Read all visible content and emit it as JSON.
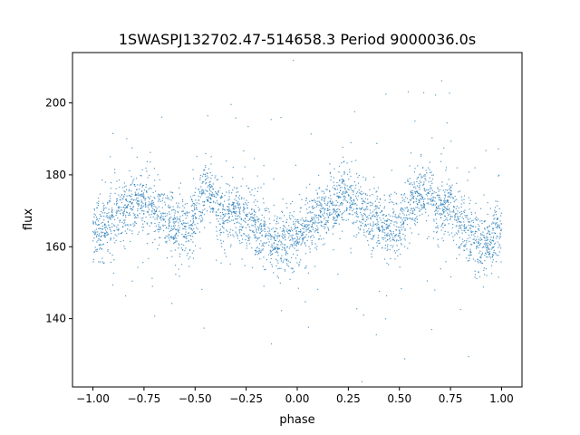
{
  "chart_data": {
    "type": "scatter",
    "title": "1SWASPJ132702.47-514658.3 Period 9000036.0s",
    "xlabel": "phase",
    "ylabel": "flux",
    "xlim": [
      -1.1,
      1.1
    ],
    "ylim": [
      121,
      214
    ],
    "xticks": [
      -1.0,
      -0.75,
      -0.5,
      -0.25,
      0.0,
      0.25,
      0.5,
      0.75,
      1.0
    ],
    "xtick_labels": [
      "−1.00",
      "−0.75",
      "−0.50",
      "−0.25",
      "0.00",
      "0.25",
      "0.50",
      "0.75",
      "1.00"
    ],
    "yticks": [
      140,
      160,
      180,
      200
    ],
    "ytick_labels": [
      "140",
      "160",
      "180",
      "200"
    ],
    "grid": false,
    "legend": "none",
    "marker_color": "#1f77b4",
    "series": [
      {
        "phase_range": [
          -1.0,
          1.0
        ],
        "baseline_flux": 166,
        "scatter_sigma": 7,
        "trend": {
          "phase": [
            -1.0,
            -0.95,
            -0.9,
            -0.85,
            -0.8,
            -0.75,
            -0.7,
            -0.65,
            -0.6,
            -0.55,
            -0.5,
            -0.45,
            -0.4,
            -0.35,
            -0.3,
            -0.25,
            -0.2,
            -0.15,
            -0.1,
            -0.05,
            0.0,
            0.05,
            0.1,
            0.15,
            0.2,
            0.25,
            0.3,
            0.35,
            0.4,
            0.45,
            0.5,
            0.55,
            0.6,
            0.65,
            0.7,
            0.75,
            0.8,
            0.85,
            0.9,
            0.95,
            1.0
          ],
          "flux": [
            164,
            165,
            167,
            169,
            172,
            173,
            170,
            168,
            166,
            165,
            168,
            176,
            172,
            168,
            169,
            168,
            166,
            163,
            160,
            162,
            164,
            165,
            168,
            170,
            172,
            174,
            172,
            168,
            166,
            165,
            166,
            172,
            175,
            174,
            170,
            172,
            168,
            162,
            160,
            162,
            164
          ]
        }
      }
    ]
  }
}
